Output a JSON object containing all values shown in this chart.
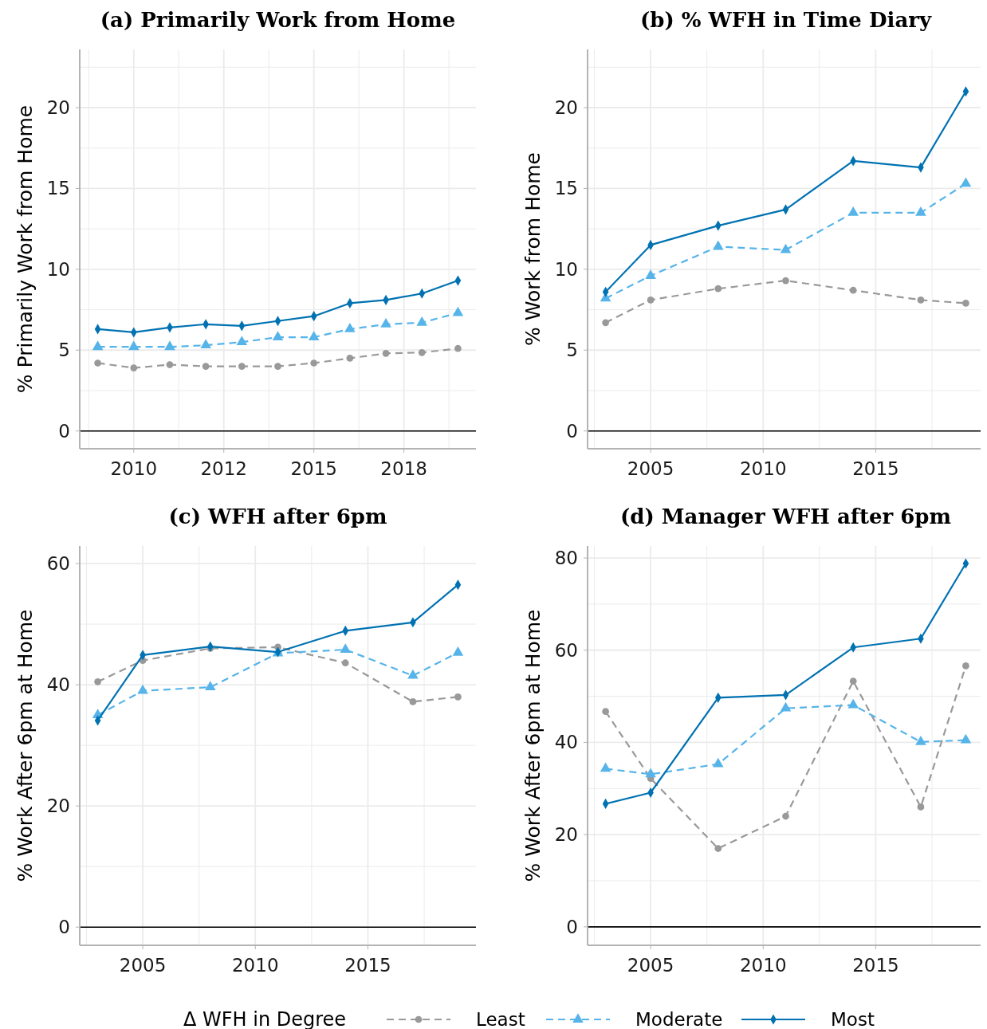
{
  "chart_data": [
    {
      "type": "line",
      "title": "(a) Primarily Work from Home",
      "ylabel": "% Primarily Work from Home",
      "x": [
        2009,
        2010,
        2011,
        2012,
        2013,
        2014,
        2015,
        2016,
        2017,
        2018,
        2019
      ],
      "xlim": [
        2008.5,
        2019.5
      ],
      "xticks": [
        {
          "value": 2008.75,
          "label": null
        },
        2010,
        {
          "value": 2011.25,
          "label": null
        },
        {
          "value": 2012.5,
          "label": "2012"
        },
        {
          "value": 2013.75,
          "label": null
        },
        2015,
        {
          "value": 2016.25,
          "label": null
        },
        {
          "value": 2017.5,
          "label": "2018"
        },
        {
          "value": 2018.75,
          "label": null
        }
      ],
      "ylim": [
        -1.1,
        23.6
      ],
      "yticks": [
        0,
        {
          "value": 2.5,
          "label": null
        },
        5,
        {
          "value": 7.5,
          "label": null
        },
        10,
        {
          "value": 12.5,
          "label": null
        },
        15,
        {
          "value": 17.5,
          "label": null
        },
        20,
        {
          "value": 22.5,
          "label": null
        }
      ],
      "grid": true,
      "ref_lines": [
        {
          "axis": "y",
          "value": 0,
          "color": "#000000"
        }
      ],
      "series": [
        {
          "color": "#999999",
          "marker": "circle",
          "line_style": "dashed",
          "values": [
            4.2,
            3.9,
            4.1,
            4.0,
            4.0,
            4.0,
            4.2,
            4.5,
            4.8,
            4.85,
            5.1
          ]
        },
        {
          "color": "#56b4e9",
          "marker": "triangle",
          "line_style": "dashed",
          "values": [
            5.2,
            5.2,
            5.2,
            5.3,
            5.5,
            5.8,
            5.8,
            6.3,
            6.6,
            6.7,
            7.3
          ]
        },
        {
          "color": "#0072b2",
          "marker": "diamond",
          "line_style": "solid",
          "values": [
            6.3,
            6.1,
            6.4,
            6.6,
            6.5,
            6.8,
            7.1,
            7.9,
            8.1,
            8.5,
            9.3
          ]
        }
      ]
    },
    {
      "type": "line",
      "title": "(b) % WFH in Time Diary",
      "ylabel": "% Work from Home",
      "x": [
        2003,
        2005,
        2008,
        2011,
        2014,
        2017,
        2019
      ],
      "xlim": [
        2002.2,
        2019.8
      ],
      "xticks": [
        {
          "value": 2002.5,
          "label": null
        },
        2005,
        {
          "value": 2007.5,
          "label": null
        },
        2010,
        {
          "value": 2012.5,
          "label": null
        },
        2015,
        {
          "value": 2017.5,
          "label": null
        }
      ],
      "ylim": [
        -1.1,
        23.6
      ],
      "yticks": [
        0,
        {
          "value": 2.5,
          "label": null
        },
        5,
        {
          "value": 7.5,
          "label": null
        },
        10,
        {
          "value": 12.5,
          "label": null
        },
        15,
        {
          "value": 17.5,
          "label": null
        },
        20,
        {
          "value": 22.5,
          "label": null
        }
      ],
      "grid": true,
      "ref_lines": [
        {
          "axis": "y",
          "value": 0,
          "color": "#000000"
        }
      ],
      "series": [
        {
          "color": "#999999",
          "marker": "circle",
          "line_style": "dashed",
          "values": [
            6.7,
            8.1,
            8.8,
            9.3,
            8.7,
            8.1,
            7.9
          ]
        },
        {
          "color": "#56b4e9",
          "marker": "triangle",
          "line_style": "dashed",
          "values": [
            8.2,
            9.6,
            11.4,
            11.2,
            13.5,
            13.5,
            15.3
          ]
        },
        {
          "color": "#0072b2",
          "marker": "diamond",
          "line_style": "solid",
          "values": [
            8.6,
            11.5,
            12.7,
            13.7,
            16.7,
            16.3,
            21.0
          ]
        }
      ]
    },
    {
      "type": "line",
      "title": "(c) WFH after 6pm",
      "ylabel": "% Work After 6pm at Home",
      "x": [
        2003,
        2005,
        2008,
        2011,
        2014,
        2017,
        2019
      ],
      "xlim": [
        2002.2,
        2019.8
      ],
      "xticks": [
        {
          "value": 2002.5,
          "label": null
        },
        2005,
        {
          "value": 2007.5,
          "label": null
        },
        2010,
        {
          "value": 2012.5,
          "label": null
        },
        2015,
        {
          "value": 2017.5,
          "label": null
        }
      ],
      "ylim": [
        -3,
        62.9
      ],
      "yticks": [
        0,
        {
          "value": 10,
          "label": null
        },
        20,
        {
          "value": 30,
          "label": null
        },
        40,
        {
          "value": 50,
          "label": null
        },
        60
      ],
      "grid": true,
      "ref_lines": [
        {
          "axis": "y",
          "value": 0,
          "color": "#000000"
        }
      ],
      "series": [
        {
          "color": "#999999",
          "marker": "circle",
          "line_style": "dashed",
          "values": [
            40.5,
            44,
            46,
            46.2,
            43.6,
            37.2,
            38
          ]
        },
        {
          "color": "#56b4e9",
          "marker": "triangle",
          "line_style": "dashed",
          "values": [
            35,
            39,
            39.6,
            45.2,
            45.8,
            41.5,
            45.3
          ]
        },
        {
          "color": "#0072b2",
          "marker": "diamond",
          "line_style": "solid",
          "values": [
            34.1,
            44.9,
            46.3,
            45.4,
            48.9,
            50.3,
            56.5
          ]
        }
      ]
    },
    {
      "type": "line",
      "title": "(d) Manager WFH after 6pm",
      "ylabel": "% Work After 6pm at Home",
      "x": [
        2003,
        2005,
        2008,
        2011,
        2014,
        2017,
        2019
      ],
      "xlim": [
        2002.2,
        2019.8
      ],
      "xticks": [
        {
          "value": 2002.5,
          "label": null
        },
        2005,
        {
          "value": 2007.5,
          "label": null
        },
        2010,
        {
          "value": 2012.5,
          "label": null
        },
        2015,
        {
          "value": 2017.5,
          "label": null
        }
      ],
      "ylim": [
        -4,
        82.6
      ],
      "yticks": [
        0,
        {
          "value": 10,
          "label": null
        },
        20,
        {
          "value": 30,
          "label": null
        },
        40,
        {
          "value": 50,
          "label": null
        },
        60,
        {
          "value": 70,
          "label": null
        },
        80
      ],
      "grid": true,
      "ref_lines": [
        {
          "axis": "y",
          "value": 0,
          "color": "#000000"
        }
      ],
      "legend": "bottom",
      "legend_title": "Δ WFH in Degree",
      "series": [
        {
          "name": "Least",
          "color": "#999999",
          "marker": "circle",
          "line_style": "dashed",
          "values": [
            46.7,
            32.2,
            17.0,
            24.0,
            53.3,
            26.0,
            56.6
          ]
        },
        {
          "name": "Moderate",
          "color": "#56b4e9",
          "marker": "triangle",
          "line_style": "dashed",
          "values": [
            34.3,
            33.1,
            35.3,
            47.4,
            48.1,
            40.1,
            40.5
          ]
        },
        {
          "name": "Most",
          "color": "#0072b2",
          "marker": "diamond",
          "line_style": "solid",
          "values": [
            26.7,
            29.1,
            49.7,
            50.3,
            60.6,
            62.5,
            78.8
          ]
        }
      ]
    }
  ]
}
